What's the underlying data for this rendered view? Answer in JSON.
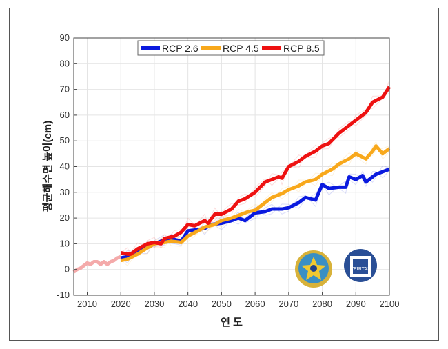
{
  "chart_data": {
    "type": "line",
    "title": "",
    "xlabel": "연  도",
    "ylabel": "평균해수면 높이(cm)",
    "xlim": [
      2006,
      2100
    ],
    "ylim": [
      -10,
      90
    ],
    "xticks": [
      2010,
      2020,
      2030,
      2040,
      2050,
      2060,
      2070,
      2080,
      2090,
      2100
    ],
    "yticks": [
      -10,
      0,
      10,
      20,
      30,
      40,
      50,
      60,
      70,
      80,
      90
    ],
    "grid": true,
    "legend_position": "top-center",
    "historical": {
      "color": "#f4aaaa",
      "x": [
        2006,
        2007,
        2008,
        2009,
        2010,
        2011,
        2012,
        2013,
        2014,
        2015,
        2016,
        2017,
        2018,
        2019,
        2020
      ],
      "y": [
        -1,
        0,
        0.5,
        1.5,
        2.5,
        2,
        3,
        3,
        2,
        3,
        2,
        3,
        3.5,
        4.5,
        5
      ]
    },
    "series": [
      {
        "name": "RCP 2.6",
        "color": "#0a1adf",
        "x": [
          2020,
          2022,
          2025,
          2028,
          2030,
          2033,
          2035,
          2038,
          2040,
          2043,
          2045,
          2047,
          2050,
          2053,
          2055,
          2057,
          2060,
          2063,
          2065,
          2068,
          2070,
          2073,
          2075,
          2078,
          2080,
          2082,
          2085,
          2087,
          2088,
          2090,
          2092,
          2093,
          2095,
          2096,
          2098,
          2100
        ],
        "y": [
          4.5,
          5,
          7,
          8.5,
          10,
          11.5,
          12,
          11,
          15,
          15.5,
          16,
          17.5,
          18,
          19,
          20,
          19,
          22,
          22.5,
          23.5,
          23.5,
          24,
          26,
          28,
          27,
          33,
          31.5,
          32,
          32,
          36,
          35,
          36.5,
          34,
          36,
          37,
          38,
          39
        ]
      },
      {
        "name": "RCP 4.5",
        "color": "#f8a81b",
        "x": [
          2020,
          2022,
          2025,
          2028,
          2030,
          2033,
          2035,
          2038,
          2040,
          2043,
          2045,
          2048,
          2050,
          2053,
          2055,
          2058,
          2060,
          2063,
          2065,
          2068,
          2070,
          2073,
          2075,
          2078,
          2080,
          2083,
          2085,
          2088,
          2090,
          2093,
          2095,
          2096,
          2098,
          2100
        ],
        "y": [
          3.5,
          4,
          6,
          8.5,
          10,
          10.5,
          11,
          10.5,
          13,
          15,
          16.5,
          17.5,
          19,
          20,
          21,
          22.5,
          23,
          26,
          28,
          29.5,
          31,
          32.5,
          34,
          35,
          37,
          39,
          41,
          43,
          45,
          43,
          46,
          48,
          45,
          47
        ]
      },
      {
        "name": "RCP 8.5",
        "color": "#ee1111",
        "x": [
          2020,
          2022,
          2023,
          2025,
          2028,
          2030,
          2032,
          2033,
          2036,
          2038,
          2040,
          2042,
          2045,
          2046,
          2048,
          2050,
          2053,
          2055,
          2057,
          2060,
          2063,
          2065,
          2067,
          2068,
          2070,
          2073,
          2075,
          2078,
          2080,
          2082,
          2085,
          2088,
          2090,
          2093,
          2095,
          2098,
          2100
        ],
        "y": [
          6.5,
          6,
          6,
          8,
          10,
          10.5,
          10,
          12,
          13,
          14.5,
          17.5,
          17,
          19,
          18,
          21.5,
          21.5,
          23.5,
          26.5,
          27.5,
          30,
          34,
          35,
          36,
          35.5,
          40,
          42,
          44,
          46,
          48,
          49,
          53,
          56,
          58,
          61,
          65,
          67,
          71
        ]
      }
    ]
  },
  "logos": [
    {
      "name": "KHOA",
      "text": "KOHA"
    },
    {
      "name": "Seoul National University",
      "text": "VERITAS LUX MEA"
    }
  ]
}
